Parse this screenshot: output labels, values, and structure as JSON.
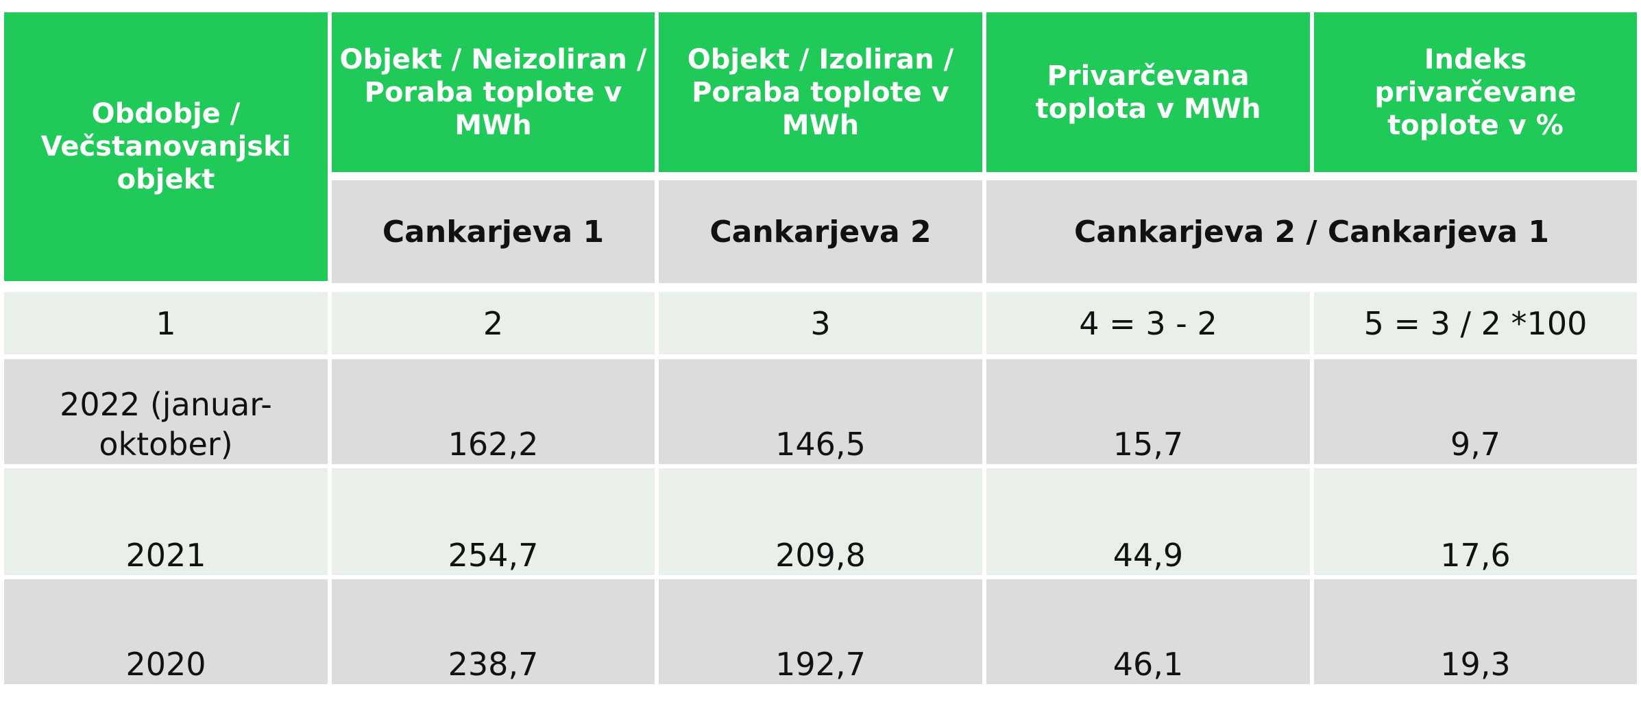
{
  "header": {
    "columns": [
      "Obdobje / Večstanovanjski objekt",
      "Objekt / Neizoliran / Poraba toplote  v MWh",
      "Objekt / Izoliran / Poraba toplote  v MWh",
      "Privarčevana toplota v MWh",
      "Indeks privarčevane toplote v %"
    ],
    "subheaders": [
      "Cankarjeva 1",
      "Cankarjeva 2",
      "Cankarjeva 2 / Cankarjeva 1"
    ]
  },
  "index_row": [
    "1",
    "2",
    "3",
    "4 = 3 - 2",
    "5 = 3 / 2 *100"
  ],
  "rows": [
    [
      "2022 (januar-oktober)",
      "162,2",
      "146,5",
      "15,7",
      "9,7"
    ],
    [
      "2021",
      "254,7",
      "209,8",
      "44,9",
      "17,6"
    ],
    [
      "2020",
      "238,7",
      "192,7",
      "46,1",
      "19,3"
    ]
  ]
}
